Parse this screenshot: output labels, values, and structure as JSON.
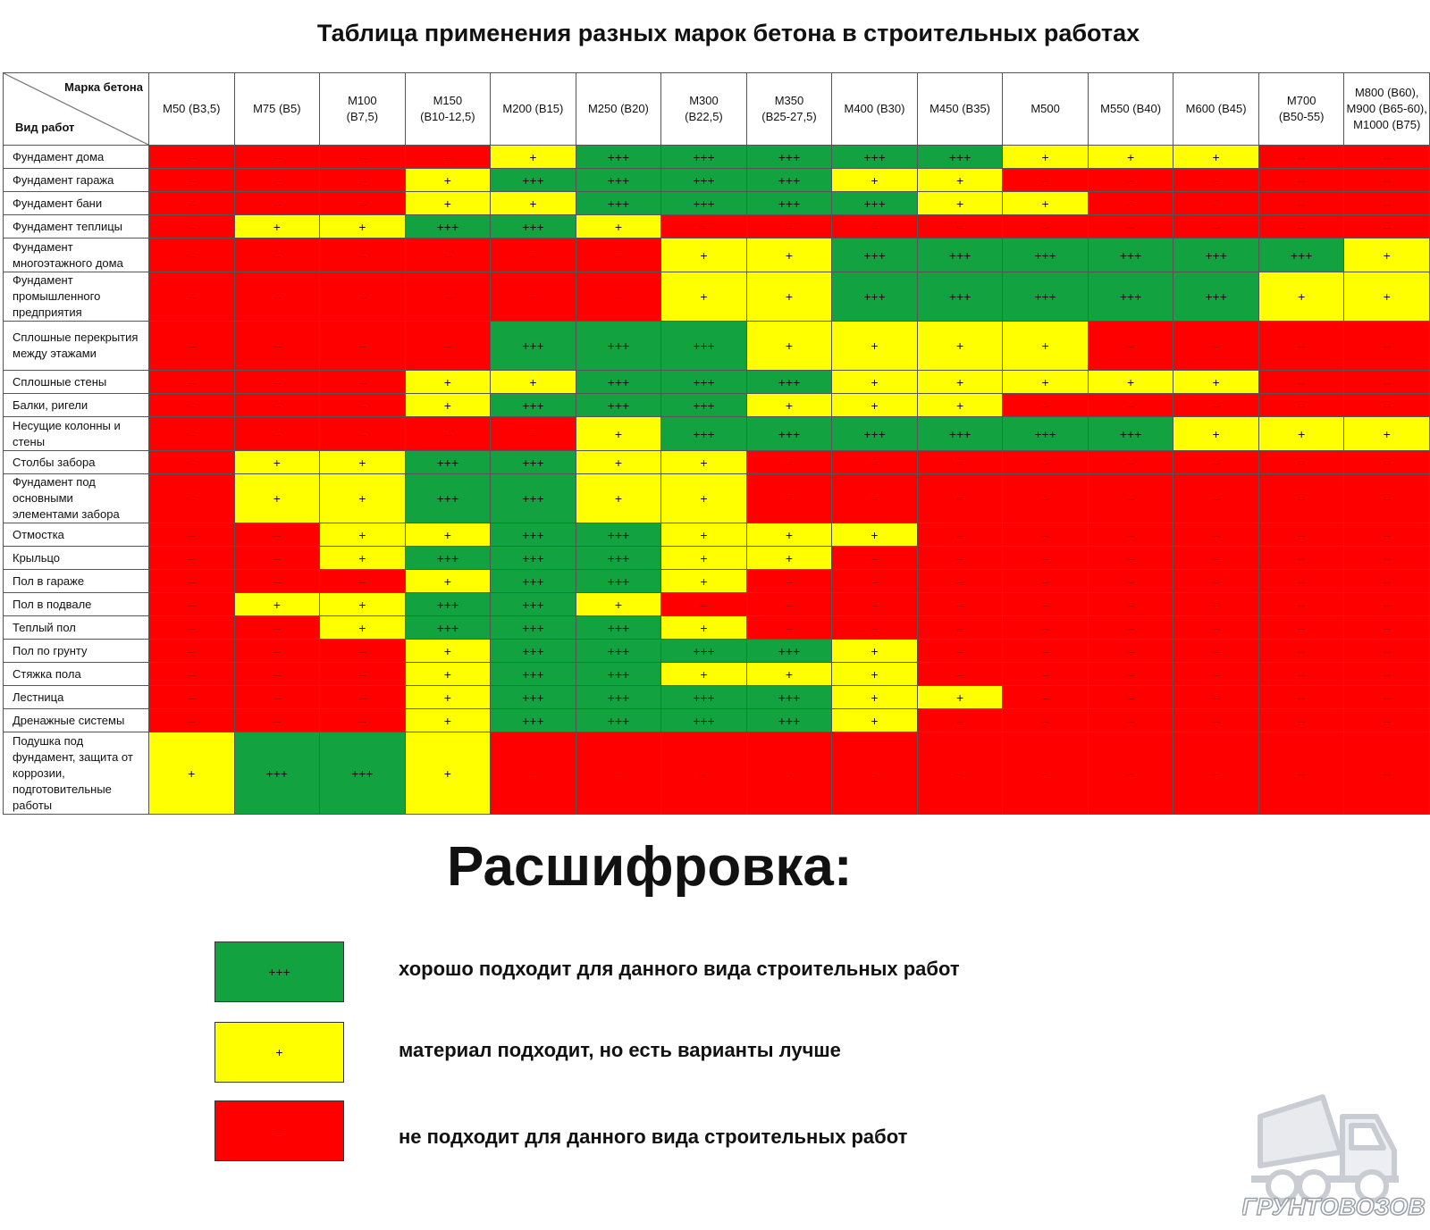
{
  "title": "Таблица применения разных марок бетона в строительных работах",
  "table": {
    "corner_grade": "Марка бетона",
    "corner_work": "Вид работ",
    "grades": [
      "М50 (В3,5)",
      "М75 (В5)",
      "М100\n(В7,5)",
      "М150\n(В10-12,5)",
      "М200 (В15)",
      "М250 (В20)",
      "М300\n(В22,5)",
      "М350\n(В25-27,5)",
      "М400 (В30)",
      "М450 (В35)",
      "М500",
      "М550 (В40)",
      "М600 (В45)",
      "М700\n(В50-55)",
      "М800 (В60),\nМ900 (В65-60),\nМ1000 (В75)"
    ],
    "rows": [
      {
        "work": "Фундамент дома",
        "cells": [
          "-",
          "-",
          "-",
          "-",
          "+",
          "+++",
          "+++",
          "+++",
          "+++",
          "+++",
          "+",
          "+",
          "+",
          "-",
          "-"
        ]
      },
      {
        "work": "Фундамент гаража",
        "cells": [
          "-",
          "-",
          "-",
          "+",
          "+++",
          "+++",
          "+++",
          "+++",
          "+",
          "+",
          "-",
          "-",
          "-",
          "-",
          "-"
        ]
      },
      {
        "work": "Фундамент бани",
        "cells": [
          "-",
          "-",
          "-",
          "+",
          "+",
          "+++",
          "+++",
          "+++",
          "+++",
          "+",
          "+",
          "-",
          "-",
          "-",
          "-"
        ]
      },
      {
        "work": "Фундамент теплицы",
        "cells": [
          "-",
          "+",
          "+",
          "+++",
          "+++",
          "+",
          "-",
          "-",
          "-",
          "-",
          "-",
          "-",
          "-",
          "-",
          "-"
        ]
      },
      {
        "work": "Фундамент многоэтажного дома",
        "cells": [
          "-",
          "-",
          "-",
          "-",
          "-",
          "-",
          "+",
          "+",
          "+++",
          "+++",
          "+++",
          "+++",
          "+++",
          "+++",
          "+"
        ]
      },
      {
        "work": "Фундамент промышленного предприятия",
        "cells": [
          "-",
          "-",
          "-",
          "-",
          "-",
          "-",
          "+",
          "+",
          "+++",
          "+++",
          "+++",
          "+++",
          "+++",
          "+",
          "+"
        ]
      },
      {
        "work": "Сплошные перекрытия между этажами",
        "cells": [
          "-",
          "-",
          "-",
          "-",
          "+++",
          "+++",
          "+++",
          "+",
          "+",
          "+",
          "+",
          "-",
          "-",
          "-",
          "-"
        ]
      },
      {
        "work": "Сплошные стены",
        "cells": [
          "-",
          "-",
          "-",
          "+",
          "+",
          "+++",
          "+++",
          "+++",
          "+",
          "+",
          "+",
          "+",
          "+",
          "-",
          "-"
        ]
      },
      {
        "work": "Балки, ригели",
        "cells": [
          "-",
          "-",
          "-",
          "+",
          "+++",
          "+++",
          "+++",
          "+",
          "+",
          "+",
          "-",
          "-",
          "-",
          "-",
          "-"
        ]
      },
      {
        "work": "Несущие колонны и стены",
        "cells": [
          "-",
          "-",
          "-",
          "-",
          "-",
          "+",
          "+++",
          "+++",
          "+++",
          "+++",
          "+++",
          "+++",
          "+",
          "+",
          "+"
        ]
      },
      {
        "work": "Столбы забора",
        "cells": [
          "-",
          "+",
          "+",
          "+++",
          "+++",
          "+",
          "+",
          "-",
          "-",
          "-",
          "-",
          "-",
          "-",
          "-",
          "-"
        ]
      },
      {
        "work": "Фундамент под основными элементами забора",
        "cells": [
          "-",
          "+",
          "+",
          "+++",
          "+++",
          "+",
          "+",
          "-",
          "-",
          "-",
          "-",
          "-",
          "-",
          "-",
          "-"
        ]
      },
      {
        "work": "Отмостка",
        "cells": [
          "-",
          "-",
          "+",
          "+",
          "+++",
          "+++",
          "+",
          "+",
          "+",
          "-",
          "-",
          "-",
          "-",
          "-",
          "-"
        ]
      },
      {
        "work": "Крыльцо",
        "cells": [
          "-",
          "-",
          "+",
          "+++",
          "+++",
          "+++",
          "+",
          "+",
          "-",
          "-",
          "-",
          "-",
          "-",
          "-",
          "-"
        ]
      },
      {
        "work": "Пол в гараже",
        "cells": [
          "-",
          "-",
          "-",
          "+",
          "+++",
          "+++",
          "+",
          "-",
          "-",
          "-",
          "-",
          "-",
          "-",
          "-",
          "-"
        ]
      },
      {
        "work": "Пол в подвале",
        "cells": [
          "-",
          "+",
          "+",
          "+++",
          "+++",
          "+",
          "-",
          "-",
          "-",
          "-",
          "-",
          "-",
          "-",
          "-",
          "-"
        ]
      },
      {
        "work": "Теплый пол",
        "cells": [
          "-",
          "-",
          "+",
          "+++",
          "+++",
          "+++",
          "+",
          "-",
          "-",
          "-",
          "-",
          "-",
          "-",
          "-",
          "-"
        ]
      },
      {
        "work": "Пол по грунту",
        "cells": [
          "-",
          "-",
          "-",
          "+",
          "+++",
          "+++",
          "+++",
          "+++",
          "+",
          "-",
          "-",
          "-",
          "-",
          "-",
          "-"
        ]
      },
      {
        "work": "Стяжка пола",
        "cells": [
          "-",
          "-",
          "-",
          "+",
          "+++",
          "+++",
          "+",
          "+",
          "+",
          "-",
          "-",
          "-",
          "-",
          "-",
          "-"
        ]
      },
      {
        "work": "Лестница",
        "cells": [
          "-",
          "-",
          "-",
          "+",
          "+++",
          "+++",
          "+++",
          "+++",
          "+",
          "+",
          "-",
          "-",
          "-",
          "-",
          "-"
        ]
      },
      {
        "work": "Дренажные системы",
        "cells": [
          "-",
          "-",
          "-",
          "+",
          "+++",
          "+++",
          "+++",
          "+++",
          "+",
          "-",
          "-",
          "-",
          "-",
          "-",
          "-"
        ]
      },
      {
        "work": "Подушка под фундамент, защита от коррозии, подготовительные работы",
        "cells": [
          "+",
          "+++",
          "+++",
          "+",
          "-",
          "-",
          "-",
          "-",
          "-",
          "-",
          "-",
          "-",
          "-",
          "-",
          "-"
        ]
      }
    ]
  },
  "status_colors": {
    "+++": "#12a23f",
    "+": "#ffff00",
    "-": "#ff0000"
  },
  "status_symbols": {
    "+++": "+++",
    "+": "+",
    "-": "–"
  },
  "legend": {
    "title": "Расшифровка:",
    "items": [
      {
        "symbol": "+++",
        "text": "хорошо подходит для данного вида строительных работ"
      },
      {
        "symbol": "+",
        "text": "материал подходит, но есть варианты лучше"
      },
      {
        "symbol": "–",
        "text": "не подходит для данного вида строительных работ"
      }
    ]
  },
  "logo": {
    "text": "ГРУНТОВОЗОВ",
    "icon": "dump-truck-icon"
  }
}
